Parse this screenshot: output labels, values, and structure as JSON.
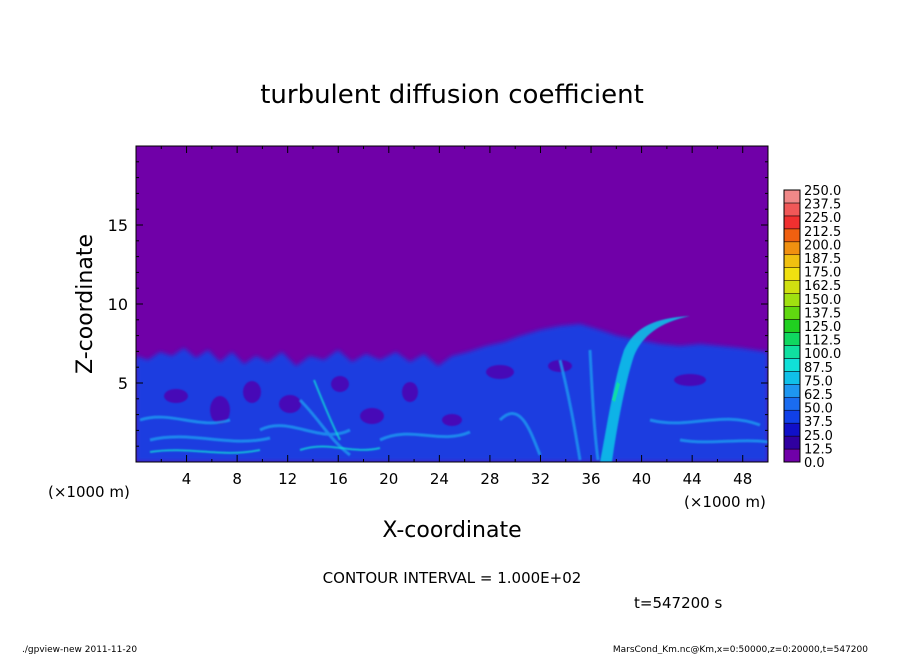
{
  "chart_data": {
    "type": "heatmap",
    "title": "turbulent diffusion coefficient",
    "xlabel": "X-coordinate",
    "ylabel": "Z-coordinate",
    "x_unit": "(×1000 m)",
    "y_unit": "(×1000 m)",
    "xlim": [
      0,
      50
    ],
    "ylim": [
      0,
      20
    ],
    "xticks": [
      4,
      8,
      12,
      16,
      20,
      24,
      28,
      32,
      36,
      40,
      44,
      48
    ],
    "yticks": [
      5,
      10,
      15
    ],
    "colorbar": {
      "levels": [
        "0.0",
        "12.5",
        "25.0",
        "37.5",
        "50.0",
        "62.5",
        "75.0",
        "87.5",
        "100.0",
        "112.5",
        "125.0",
        "137.5",
        "150.0",
        "162.5",
        "175.0",
        "187.5",
        "200.0",
        "212.5",
        "225.0",
        "237.5",
        "250.0"
      ],
      "colors": [
        "#7000a8",
        "#3000a0",
        "#1010c8",
        "#1040e8",
        "#1a6cf0",
        "#1e96f0",
        "#10c0e8",
        "#10e0d8",
        "#10e0a0",
        "#10d860",
        "#20d020",
        "#60d810",
        "#a0e010",
        "#d0e010",
        "#f0e010",
        "#f0c010",
        "#f09010",
        "#f06010",
        "#f03030",
        "#f05858",
        "#f08888"
      ],
      "background_color": "#7000a8"
    },
    "annotation": "CONTOUR INTERVAL = 1.000E+02",
    "time_label": "t=547200 s"
  },
  "footer": {
    "left": "./gpview-new   2011-11-20",
    "right": "MarsCond_Km.nc@Km,x=0:50000,z=0:20000,t=547200"
  }
}
